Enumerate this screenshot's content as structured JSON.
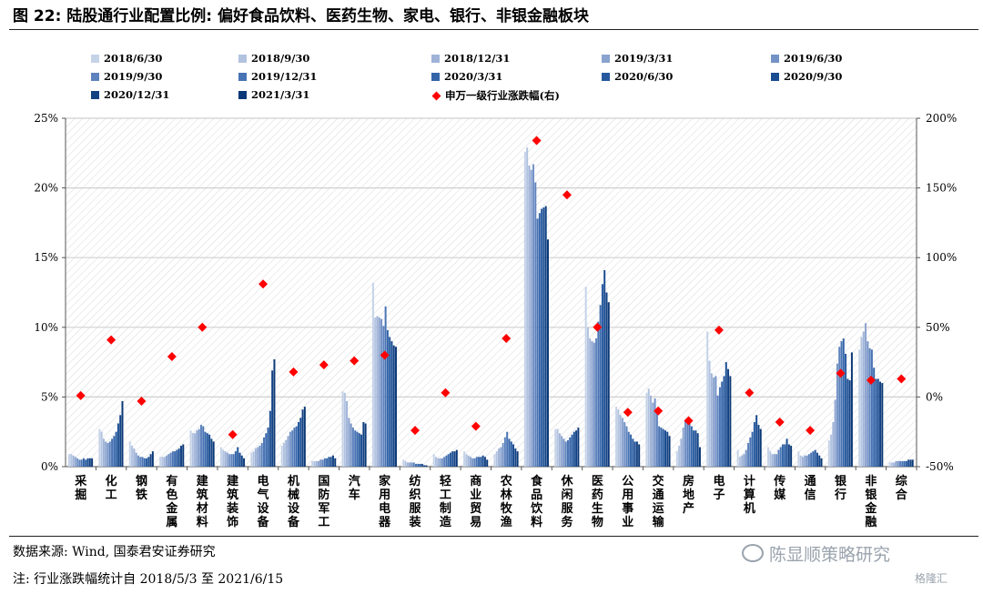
{
  "title": "图 22: 陆股通行业配置比例: 偏好食品饮料、医药生物、家电、银行、非银金融板块",
  "source_note": "数据来源: Wind, 国泰君安证券研究",
  "footnote": "注: 行业涨跌幅统计自 2018/5/3 至 2021/6/15",
  "watermark": "陈显顺策略研究",
  "watermark_small": "格隆汇",
  "chart_data": {
    "type": "bar",
    "categories": [
      "采掘",
      "化工",
      "钢铁",
      "有色金属",
      "建筑材料",
      "建筑装饰",
      "电气设备",
      "机械设备",
      "国防军工",
      "汽车",
      "家用电器",
      "纺织服装",
      "轻工制造",
      "商业贸易",
      "农林牧渔",
      "食品饮料",
      "休闲服务",
      "医药生物",
      "公用事业",
      "交通运输",
      "房地产",
      "电子",
      "计算机",
      "传媒",
      "通信",
      "银行",
      "非银金融",
      "综合"
    ],
    "series_names": [
      "2018/6/30",
      "2018/9/30",
      "2018/12/31",
      "2019/3/31",
      "2019/6/30",
      "2019/9/30",
      "2019/12/31",
      "2020/3/31",
      "2020/6/30",
      "2020/9/30",
      "2020/12/31",
      "2021/3/31"
    ],
    "series_colors": [
      "#c5d3e8",
      "#b2c3e0",
      "#9fb3d8",
      "#8aa3cf",
      "#7392c6",
      "#5d82bd",
      "#4873b4",
      "#3465a9",
      "#25589e",
      "#1a4c91",
      "#124284",
      "#0b3877"
    ],
    "values": [
      [
        0.9,
        0.9,
        0.8,
        0.7,
        0.6,
        0.5,
        0.5,
        0.6,
        0.5,
        0.6,
        0.6,
        0.6
      ],
      [
        2.7,
        2.5,
        2.0,
        1.8,
        1.7,
        1.8,
        2.0,
        2.2,
        2.5,
        3.1,
        3.7,
        4.7
      ],
      [
        1.8,
        1.5,
        1.3,
        1.0,
        0.8,
        0.7,
        0.7,
        0.6,
        0.6,
        0.7,
        0.9,
        1.1
      ],
      [
        0.7,
        0.7,
        0.7,
        0.8,
        0.9,
        1.0,
        1.1,
        1.1,
        1.2,
        1.3,
        1.5,
        1.6
      ],
      [
        2.6,
        2.4,
        2.4,
        2.6,
        2.7,
        3.0,
        2.9,
        2.5,
        2.4,
        2.3,
        2.0,
        1.8
      ],
      [
        1.4,
        1.2,
        1.1,
        1.0,
        0.9,
        0.9,
        0.9,
        1.1,
        1.4,
        1.0,
        0.8,
        0.6
      ],
      [
        1.0,
        1.1,
        1.3,
        1.4,
        1.5,
        1.7,
        2.1,
        2.4,
        2.8,
        4.0,
        6.9,
        7.7
      ],
      [
        1.5,
        1.7,
        1.9,
        2.2,
        2.5,
        2.6,
        2.8,
        2.9,
        3.2,
        3.5,
        4.1,
        4.3
      ],
      [
        0.4,
        0.4,
        0.4,
        0.4,
        0.5,
        0.5,
        0.6,
        0.6,
        0.7,
        0.7,
        0.8,
        0.6
      ],
      [
        5.4,
        5.3,
        4.7,
        3.5,
        3.1,
        2.8,
        2.6,
        2.5,
        2.4,
        2.3,
        3.2,
        3.1
      ],
      [
        13.2,
        10.7,
        10.8,
        10.7,
        10.6,
        10.1,
        11.5,
        9.8,
        9.3,
        9.0,
        8.7,
        8.6
      ],
      [
        0.5,
        0.4,
        0.3,
        0.3,
        0.3,
        0.3,
        0.2,
        0.2,
        0.2,
        0.2,
        0.1,
        0.1
      ],
      [
        0.9,
        0.7,
        0.6,
        0.6,
        0.6,
        0.7,
        0.8,
        0.9,
        1.0,
        1.1,
        1.1,
        1.2
      ],
      [
        1.1,
        0.9,
        0.8,
        0.7,
        0.6,
        0.6,
        0.7,
        0.7,
        0.7,
        0.8,
        0.7,
        0.5
      ],
      [
        0.9,
        1.1,
        1.3,
        1.4,
        1.7,
        2.1,
        2.5,
        2.0,
        1.8,
        1.6,
        1.3,
        1.1
      ],
      [
        22.6,
        22.9,
        21.6,
        21.3,
        21.7,
        20.4,
        17.8,
        18.2,
        18.5,
        18.6,
        18.7,
        16.3
      ],
      [
        2.7,
        2.7,
        2.4,
        2.2,
        2.0,
        1.8,
        1.9,
        2.1,
        2.3,
        2.5,
        2.6,
        2.8
      ],
      [
        12.9,
        10.0,
        9.2,
        9.0,
        8.9,
        9.2,
        10.4,
        11.6,
        13.1,
        14.1,
        12.5,
        11.8
      ],
      [
        4.3,
        4.1,
        3.7,
        3.5,
        3.2,
        2.9,
        2.5,
        2.3,
        2.0,
        1.8,
        1.8,
        1.6
      ],
      [
        5.3,
        5.6,
        5.1,
        4.6,
        4.9,
        3.9,
        2.9,
        2.8,
        2.7,
        2.6,
        2.5,
        2.2
      ],
      [
        1.1,
        1.5,
        2.0,
        2.8,
        3.3,
        3.4,
        3.2,
        2.9,
        2.6,
        2.6,
        2.4,
        1.4
      ],
      [
        9.7,
        7.6,
        6.7,
        6.4,
        6.5,
        5.1,
        5.7,
        6.1,
        6.5,
        7.5,
        7.0,
        6.5
      ],
      [
        1.2,
        0.7,
        0.8,
        0.9,
        1.2,
        1.7,
        2.1,
        2.5,
        3.2,
        3.7,
        3.0,
        2.7
      ],
      [
        1.4,
        1.1,
        0.9,
        0.9,
        0.9,
        1.2,
        1.4,
        1.6,
        1.6,
        2.0,
        1.6,
        1.5
      ],
      [
        1.1,
        0.8,
        0.7,
        0.8,
        0.8,
        0.9,
        1.0,
        1.1,
        1.2,
        1.0,
        0.8,
        0.6
      ],
      [
        1.9,
        2.3,
        3.2,
        4.8,
        7.4,
        8.6,
        9.0,
        9.2,
        8.1,
        6.3,
        6.2,
        8.2
      ],
      [
        8.4,
        9.3,
        9.7,
        10.3,
        9.0,
        8.5,
        8.4,
        7.1,
        6.3,
        6.3,
        6.1,
        6.0
      ],
      [
        0.3,
        0.3,
        0.3,
        0.4,
        0.4,
        0.4,
        0.4,
        0.4,
        0.4,
        0.5,
        0.5,
        0.5
      ]
    ],
    "scatter_name": "申万一级行业涨跌幅(右)",
    "scatter_color": "#ff0000",
    "scatter_values": [
      1,
      41,
      -3,
      29,
      50,
      -27,
      81,
      18,
      23,
      26,
      30,
      -24,
      3,
      -21,
      42,
      184,
      145,
      50,
      -11,
      -10,
      -17,
      48,
      3,
      -18,
      -24,
      17,
      12,
      13
    ],
    "y_left": {
      "min": 0,
      "max": 25,
      "ticks": [
        "0%",
        "5%",
        "10%",
        "15%",
        "20%",
        "25%"
      ]
    },
    "y_right": {
      "min": -50,
      "max": 200,
      "ticks": [
        "-50%",
        "0%",
        "50%",
        "100%",
        "150%",
        "200%"
      ]
    },
    "legend_position": "top",
    "grid": true
  }
}
